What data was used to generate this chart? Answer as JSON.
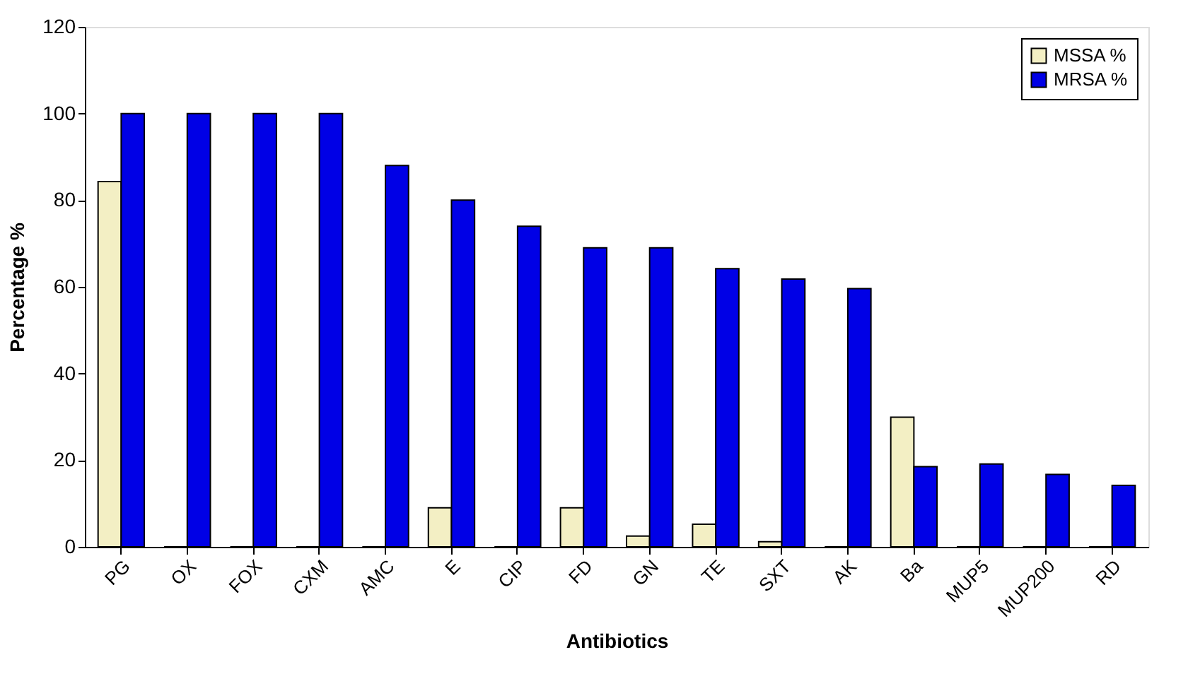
{
  "chart_data": {
    "type": "bar",
    "xlabel": "Antibiotics",
    "ylabel": "Percentage %",
    "categories": [
      "PG",
      "OX",
      "FOX",
      "CXM",
      "AMC",
      "E",
      "CIP",
      "FD",
      "GN",
      "TE",
      "SXT",
      "AK",
      "Ba",
      "MUP5",
      "MUP200",
      "RD"
    ],
    "series": [
      {
        "name": "MSSA %",
        "color": "#f3efc4",
        "values": [
          84.3,
          0,
          0,
          0,
          0,
          9,
          0,
          9,
          2.5,
          5.2,
          1.2,
          0,
          29.9,
          0,
          0,
          0
        ]
      },
      {
        "name": "MRSA %",
        "color": "#0000e6",
        "values": [
          100,
          100,
          100,
          100,
          88,
          80,
          74,
          69,
          69,
          64.2,
          61.8,
          59.6,
          18.5,
          19.1,
          16.7,
          14.2
        ]
      }
    ],
    "ylim": [
      0,
      120
    ],
    "yticks": [
      0,
      20,
      40,
      60,
      80,
      100,
      120
    ],
    "grid": false,
    "legend": "top right"
  }
}
